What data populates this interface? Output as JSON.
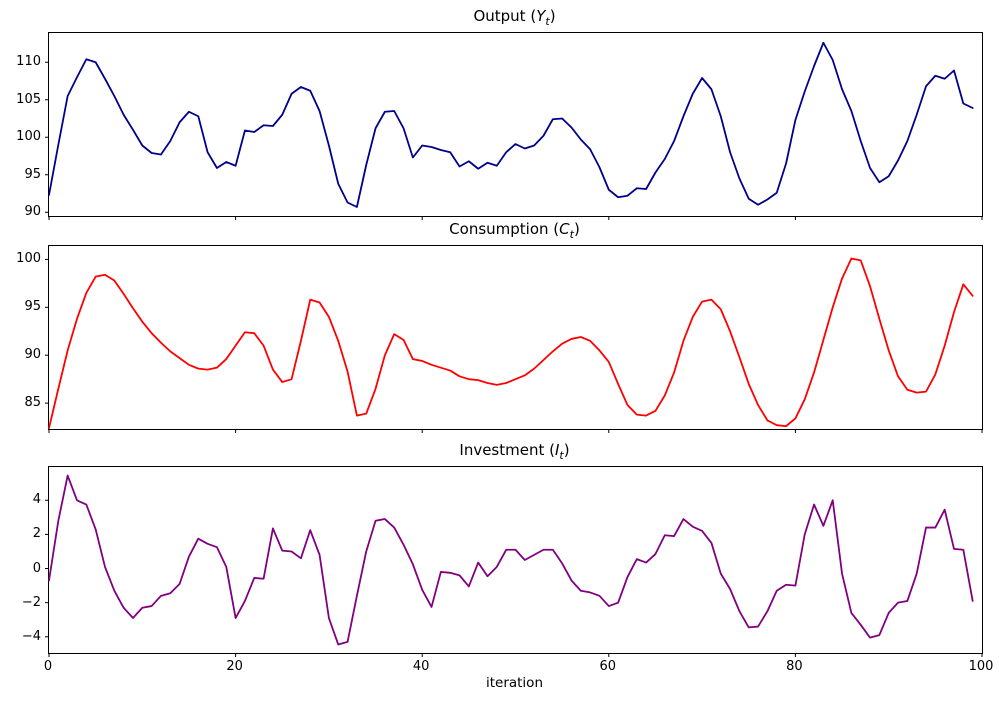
{
  "figure": {
    "background": "#ffffff",
    "text_color": "#000000",
    "spine_color": "#000000"
  },
  "x_axis": {
    "label": "iteration",
    "ticks": [
      0,
      20,
      40,
      60,
      80,
      100
    ],
    "xlim": [
      0,
      100
    ]
  },
  "chart_data": [
    {
      "type": "line",
      "title": "Output (Y_t)",
      "title_prefix": "Output (",
      "title_var": "Y",
      "title_sub": "t",
      "title_suffix": ")",
      "color": "#00008b",
      "legend": "none",
      "grid": false,
      "x_start": 0,
      "x_step": 1,
      "ylim": [
        89.5,
        113.9
      ],
      "yticks": [
        90,
        95,
        100,
        105,
        110
      ],
      "values": [
        92.3,
        99.0,
        105.5,
        108.0,
        110.4,
        110.0,
        107.8,
        105.5,
        103.0,
        101.0,
        98.9,
        97.9,
        97.7,
        99.5,
        102.0,
        103.4,
        102.8,
        98.0,
        95.9,
        96.7,
        96.2,
        100.9,
        100.7,
        101.6,
        101.5,
        103.0,
        105.8,
        106.7,
        106.2,
        103.5,
        98.9,
        93.8,
        91.3,
        90.7,
        96.3,
        101.2,
        103.4,
        103.5,
        101.2,
        97.3,
        98.9,
        98.7,
        98.3,
        98.0,
        96.1,
        96.8,
        95.8,
        96.6,
        96.2,
        98.0,
        99.1,
        98.5,
        98.9,
        100.2,
        102.4,
        102.5,
        101.3,
        99.7,
        98.4,
        96.0,
        93.0,
        92.0,
        92.2,
        93.2,
        93.1,
        95.3,
        97.1,
        99.5,
        102.8,
        105.8,
        107.9,
        106.4,
        102.8,
        98.0,
        94.5,
        91.8,
        91.0,
        91.7,
        92.6,
        96.5,
        102.3,
        106.1,
        109.5,
        112.6,
        110.3,
        106.4,
        103.5,
        99.5,
        95.9,
        94.0,
        94.8,
        96.9,
        99.5,
        103.0,
        106.8,
        108.2,
        107.8,
        108.9,
        104.5,
        103.9
      ]
    },
    {
      "type": "line",
      "title": "Consumption (C_t)",
      "title_prefix": "Consumption (",
      "title_var": "C",
      "title_sub": "t",
      "title_suffix": ")",
      "color": "#ff0000",
      "legend": "none",
      "grid": false,
      "x_start": 0,
      "x_step": 1,
      "ylim": [
        82.3,
        101.4
      ],
      "yticks": [
        85,
        90,
        95,
        100
      ],
      "values": [
        82.4,
        86.5,
        90.5,
        93.8,
        96.5,
        98.2,
        98.4,
        97.8,
        96.4,
        94.9,
        93.5,
        92.3,
        91.3,
        90.4,
        89.7,
        89.0,
        88.6,
        88.5,
        88.7,
        89.6,
        91.0,
        92.4,
        92.3,
        91.0,
        88.5,
        87.2,
        87.5,
        91.5,
        95.8,
        95.5,
        94.0,
        91.5,
        88.3,
        83.7,
        83.9,
        86.5,
        90.0,
        92.2,
        91.6,
        89.6,
        89.4,
        89.0,
        88.7,
        88.4,
        87.8,
        87.5,
        87.4,
        87.1,
        86.9,
        87.1,
        87.5,
        87.9,
        88.6,
        89.5,
        90.4,
        91.2,
        91.7,
        91.9,
        91.5,
        90.5,
        89.3,
        87.0,
        84.8,
        83.8,
        83.7,
        84.2,
        85.8,
        88.2,
        91.5,
        94.0,
        95.6,
        95.8,
        94.8,
        92.5,
        89.8,
        87.0,
        84.8,
        83.2,
        82.7,
        82.6,
        83.4,
        85.4,
        88.2,
        91.6,
        95.0,
        98.0,
        100.1,
        99.9,
        97.2,
        93.8,
        90.5,
        87.8,
        86.4,
        86.1,
        86.2,
        88.0,
        91.0,
        94.5,
        97.4,
        96.2
      ]
    },
    {
      "type": "line",
      "title": "Investment (I_t)",
      "title_prefix": "Investment (",
      "title_var": "I",
      "title_sub": "t",
      "title_suffix": ")",
      "color": "#800080",
      "legend": "none",
      "grid": false,
      "x_start": 0,
      "x_step": 1,
      "xlabel": "iteration",
      "xticks": [
        0,
        20,
        40,
        60,
        80,
        100
      ],
      "ylim": [
        -4.95,
        5.95
      ],
      "yticks": [
        -4,
        -2,
        0,
        2,
        4
      ],
      "values": [
        -0.7,
        2.8,
        5.45,
        4.0,
        3.75,
        2.3,
        0.1,
        -1.3,
        -2.3,
        -2.9,
        -2.3,
        -2.2,
        -1.6,
        -1.45,
        -0.9,
        0.7,
        1.75,
        1.45,
        1.25,
        0.1,
        -2.9,
        -1.9,
        -0.55,
        -0.6,
        2.35,
        1.05,
        1.0,
        0.6,
        2.25,
        0.8,
        -2.9,
        -4.45,
        -4.3,
        -1.6,
        1.0,
        2.8,
        2.9,
        2.4,
        1.4,
        0.25,
        -1.25,
        -2.25,
        -0.2,
        -0.25,
        -0.4,
        -1.05,
        0.35,
        -0.45,
        0.1,
        1.1,
        1.1,
        0.5,
        0.8,
        1.1,
        1.1,
        0.3,
        -0.7,
        -1.3,
        -1.4,
        -1.6,
        -2.2,
        -2.0,
        -0.5,
        0.55,
        0.35,
        0.85,
        1.95,
        1.9,
        2.9,
        2.45,
        2.2,
        1.5,
        -0.3,
        -1.2,
        -2.5,
        -3.45,
        -3.4,
        -2.5,
        -1.3,
        -0.95,
        -1.0,
        2.0,
        3.75,
        2.5,
        4.0,
        -0.3,
        -2.6,
        -3.3,
        -4.05,
        -3.9,
        -2.6,
        -2.0,
        -1.9,
        -0.3,
        2.4,
        2.4,
        3.45,
        1.15,
        1.1,
        -1.9
      ]
    }
  ]
}
